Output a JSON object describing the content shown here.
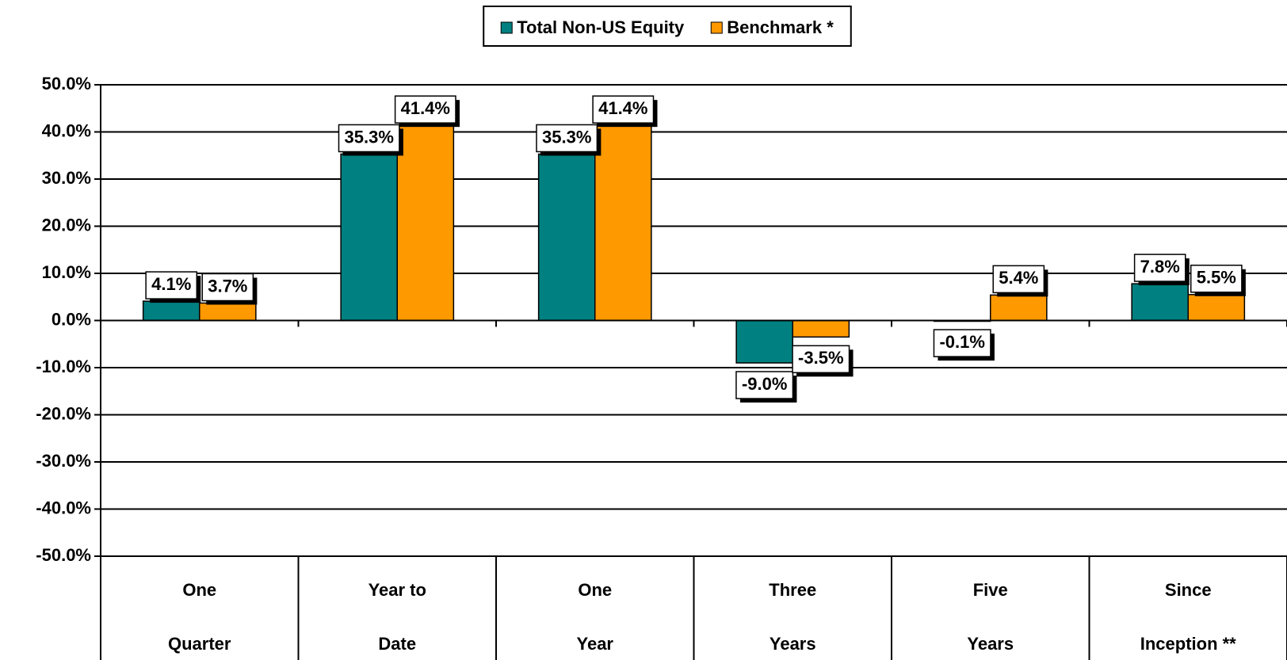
{
  "chart_data": {
    "type": "bar",
    "categories": [
      [
        "One",
        "Quarter"
      ],
      [
        "Year to",
        "Date"
      ],
      [
        "One",
        "Year"
      ],
      [
        "Three",
        "Years"
      ],
      [
        "Five",
        "Years"
      ],
      [
        "Since",
        "Inception **"
      ]
    ],
    "series": [
      {
        "name": "Total Non-US Equity",
        "color": "#008080",
        "values": [
          4.1,
          35.3,
          35.3,
          -9.0,
          -0.1,
          7.8
        ],
        "value_labels": [
          "4.1%",
          "35.3%",
          "35.3%",
          "-9.0%",
          "-0.1%",
          "7.8%"
        ]
      },
      {
        "name": "Benchmark *",
        "color": "#FF9900",
        "values": [
          3.7,
          41.4,
          41.4,
          -3.5,
          5.4,
          5.5
        ],
        "value_labels": [
          "3.7%",
          "41.4%",
          "41.4%",
          "-3.5%",
          "5.4%",
          "5.5%"
        ]
      }
    ],
    "ylim": [
      -50,
      50
    ],
    "yticks": [
      {
        "value": -50,
        "label": "-50.0%"
      },
      {
        "value": -40,
        "label": "-40.0%"
      },
      {
        "value": -30,
        "label": "-30.0%"
      },
      {
        "value": -20,
        "label": "-20.0%"
      },
      {
        "value": -10,
        "label": "-10.0%"
      },
      {
        "value": 0,
        "label": "0.0%"
      },
      {
        "value": 10,
        "label": "10.0%"
      },
      {
        "value": 20,
        "label": "20.0%"
      },
      {
        "value": 30,
        "label": "30.0%"
      },
      {
        "value": 40,
        "label": "40.0%"
      },
      {
        "value": 50,
        "label": "50.0%"
      }
    ],
    "grid": true,
    "legend": "top"
  }
}
